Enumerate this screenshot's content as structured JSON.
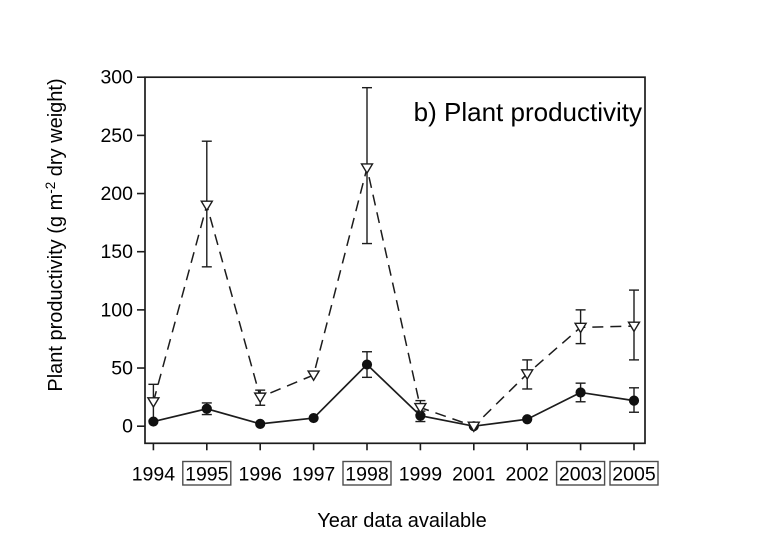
{
  "chart_data": {
    "type": "line",
    "title": "b) Plant productivity",
    "xlabel": "Year data available",
    "ylabel": "Plant productivity (g m-2 dry weight)",
    "ylabel_parts": {
      "pre": "Plant productivity (g m",
      "sup": "-2",
      "post": " dry weight)"
    },
    "categories": [
      "1994",
      "1995",
      "1996",
      "1997",
      "1998",
      "1999",
      "2001",
      "2002",
      "2003",
      "2005"
    ],
    "boxed_categories": [
      "1995",
      "1998",
      "2003",
      "2005"
    ],
    "yticks": [
      0,
      50,
      100,
      150,
      200,
      250,
      300
    ],
    "ylim": [
      -15,
      300
    ],
    "grid": false,
    "legend_position": "none",
    "series": [
      {
        "name": "upper-series-open-triangle-dashed",
        "marker": "open-triangle-down",
        "line_style": "dashed",
        "values": [
          21,
          190,
          25,
          44,
          222,
          16,
          0,
          45,
          85,
          86
        ],
        "err_low": [
          5,
          137,
          18,
          null,
          157,
          10,
          null,
          32,
          71,
          57
        ],
        "err_high": [
          36,
          245,
          31,
          null,
          291,
          22,
          null,
          57,
          100,
          117
        ]
      },
      {
        "name": "lower-series-filled-circle-solid",
        "marker": "filled-circle",
        "line_style": "solid",
        "values": [
          4,
          15,
          2,
          7,
          53,
          9,
          0,
          6,
          29,
          22
        ],
        "err_low": [
          null,
          10,
          null,
          null,
          42,
          4,
          null,
          null,
          21,
          12
        ],
        "err_high": [
          null,
          20,
          null,
          null,
          64,
          13,
          null,
          null,
          37,
          33
        ]
      }
    ],
    "colors": {
      "stroke": "#1c1c1c",
      "text": "#000000",
      "year_box_stroke": "#4d4d4d",
      "background": "#ffffff",
      "marker_fill_open": "#ffffff",
      "marker_fill_solid": "#111111"
    }
  }
}
